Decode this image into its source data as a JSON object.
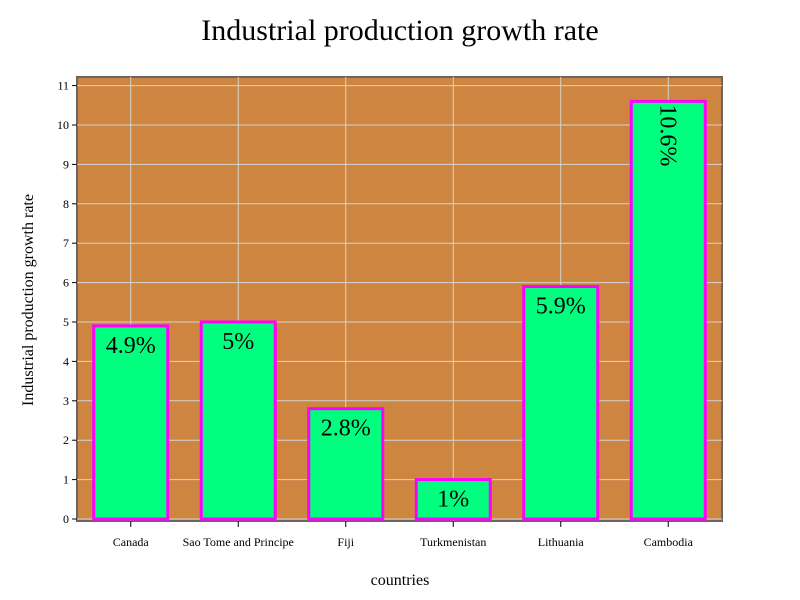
{
  "chart_data": {
    "type": "bar",
    "title": "Industrial production growth rate",
    "xlabel": "countries",
    "ylabel": "Industrial production growth rate",
    "categories": [
      "Canada",
      "Sao Tome and Principe",
      "Fiji",
      "Turkmenistan",
      "Lithuania",
      "Cambodia"
    ],
    "values": [
      4.9,
      5,
      2.8,
      1,
      5.9,
      10.6
    ],
    "data_labels": [
      "4.9%",
      "5%",
      "2.8%",
      "1%",
      "5.9%",
      "10.6%"
    ],
    "ylim": [
      0,
      11.2
    ],
    "yticks": [
      "0",
      "1",
      "2",
      "3",
      "4",
      "5",
      "6",
      "7",
      "8",
      "9",
      "10",
      "11"
    ],
    "grid": true,
    "legend": "none"
  },
  "colors": {
    "plot_background": "#cd853f",
    "bar_fill": "#00ff7f",
    "bar_stroke": "#ff00ff",
    "grid": "#d3d3d3",
    "axis": "#666666"
  }
}
